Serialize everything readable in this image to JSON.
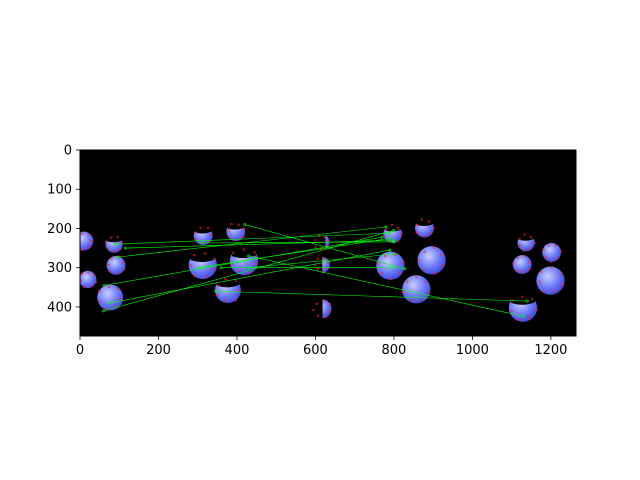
{
  "figure": {
    "background": "#ffffff"
  },
  "chart_data": {
    "type": "image",
    "title": "",
    "xlabel": "",
    "ylabel": "",
    "xlim": [
      0,
      1264
    ],
    "ylim": [
      474,
      0
    ],
    "y_axis_inverted": true,
    "grid": false,
    "legend": "none",
    "xticks": [
      0,
      200,
      400,
      600,
      800,
      1000,
      1200
    ],
    "yticks": [
      0,
      100,
      200,
      300,
      400
    ],
    "image_background": "#000000",
    "colors": {
      "sphere_fill": "#6f7dfa",
      "sphere_highlight": "#c9cffd",
      "sphere_shadow": "#3a44d8",
      "keypoint_marker": "#ff2020",
      "match_line": "#00ff00"
    },
    "spheres": [
      {
        "x": 10,
        "y": 232,
        "r": 24,
        "cut": ""
      },
      {
        "x": 87,
        "y": 240,
        "r": 22,
        "cut": "top"
      },
      {
        "x": 92,
        "y": 294,
        "r": 24,
        "cut": ""
      },
      {
        "x": 20,
        "y": 330,
        "r": 22,
        "cut": ""
      },
      {
        "x": 77,
        "y": 376,
        "r": 33,
        "cut": ""
      },
      {
        "x": 314,
        "y": 218,
        "r": 24,
        "cut": "top"
      },
      {
        "x": 397,
        "y": 208,
        "r": 24,
        "cut": "top"
      },
      {
        "x": 313,
        "y": 293,
        "r": 36,
        "cut": "top"
      },
      {
        "x": 418,
        "y": 283,
        "r": 36,
        "cut": "top"
      },
      {
        "x": 377,
        "y": 357,
        "r": 33,
        "cut": "top"
      },
      {
        "x": 616,
        "y": 235,
        "r": 20,
        "cut": "left-thin"
      },
      {
        "x": 617,
        "y": 293,
        "r": 20,
        "cut": "left"
      },
      {
        "x": 617,
        "y": 405,
        "r": 24,
        "cut": "left"
      },
      {
        "x": 797,
        "y": 213,
        "r": 24,
        "cut": "top"
      },
      {
        "x": 878,
        "y": 199,
        "r": 24,
        "cut": "top"
      },
      {
        "x": 791,
        "y": 295,
        "r": 36,
        "cut": ""
      },
      {
        "x": 896,
        "y": 281,
        "r": 36,
        "cut": ""
      },
      {
        "x": 857,
        "y": 355,
        "r": 36,
        "cut": ""
      },
      {
        "x": 1137,
        "y": 236,
        "r": 22,
        "cut": "top"
      },
      {
        "x": 1202,
        "y": 261,
        "r": 24,
        "cut": ""
      },
      {
        "x": 1127,
        "y": 292,
        "r": 24,
        "cut": ""
      },
      {
        "x": 1199,
        "y": 333,
        "r": 36,
        "cut": ""
      },
      {
        "x": 1129,
        "y": 402,
        "r": 36,
        "cut": "top"
      }
    ],
    "matches": [
      {
        "x1": 90,
        "y1": 240,
        "x2": 790,
        "y2": 212
      },
      {
        "x1": 95,
        "y1": 273,
        "x2": 780,
        "y2": 196
      },
      {
        "x1": 62,
        "y1": 345,
        "x2": 770,
        "y2": 222
      },
      {
        "x1": 60,
        "y1": 410,
        "x2": 800,
        "y2": 205
      },
      {
        "x1": 75,
        "y1": 390,
        "x2": 790,
        "y2": 255
      },
      {
        "x1": 310,
        "y1": 237,
        "x2": 800,
        "y2": 234
      },
      {
        "x1": 420,
        "y1": 190,
        "x2": 828,
        "y2": 303
      },
      {
        "x1": 300,
        "y1": 300,
        "x2": 790,
        "y2": 225
      },
      {
        "x1": 430,
        "y1": 300,
        "x2": 800,
        "y2": 265
      },
      {
        "x1": 346,
        "y1": 360,
        "x2": 1140,
        "y2": 385
      },
      {
        "x1": 430,
        "y1": 270,
        "x2": 1130,
        "y2": 424
      },
      {
        "x1": 360,
        "y1": 300,
        "x2": 800,
        "y2": 300
      },
      {
        "x1": 115,
        "y1": 250,
        "x2": 800,
        "y2": 230
      }
    ]
  }
}
